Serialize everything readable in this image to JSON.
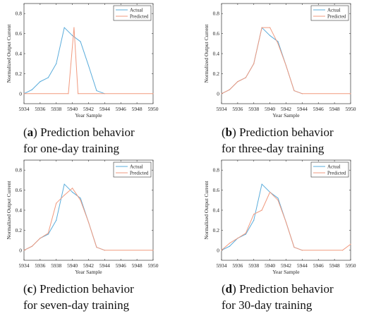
{
  "colors": {
    "actual": "#5aacdb",
    "predicted": "#f19a7f",
    "axis": "#333333"
  },
  "chart_data": [
    {
      "type": "line",
      "panel": "a",
      "ylabel": "Normalized Output Current",
      "xlabel": "Year Sample",
      "xlim": [
        5934,
        5950
      ],
      "ylim": [
        -0.1,
        0.9
      ],
      "xticks": [
        5934,
        5936,
        5938,
        5940,
        5942,
        5944,
        5946,
        5948,
        5950
      ],
      "yticks": [
        0,
        0.2,
        0.4,
        0.6,
        0.8
      ],
      "grid": false,
      "legend": "top-right",
      "series": [
        {
          "name": "Actual",
          "color": "#5aacdb",
          "x": [
            5934,
            5935,
            5936,
            5937,
            5938,
            5939,
            5940,
            5941,
            5942,
            5943,
            5944
          ],
          "y": [
            0,
            0.04,
            0.12,
            0.16,
            0.3,
            0.66,
            0.58,
            0.52,
            0.28,
            0.03,
            0
          ]
        },
        {
          "name": "Predicted",
          "color": "#f19a7f",
          "x": [
            5934,
            5939.5,
            5940.2,
            5940.7,
            5950
          ],
          "y": [
            0,
            0,
            0.66,
            0,
            0
          ]
        }
      ]
    },
    {
      "type": "line",
      "panel": "b",
      "ylabel": "Normalized Output Current",
      "xlabel": "Year Sample",
      "xlim": [
        5934,
        5950
      ],
      "ylim": [
        -0.1,
        0.9
      ],
      "xticks": [
        5934,
        5936,
        5938,
        5940,
        5942,
        5944,
        5946,
        5948,
        5950
      ],
      "yticks": [
        0,
        0.2,
        0.4,
        0.6,
        0.8
      ],
      "grid": false,
      "legend": "top-right",
      "series": [
        {
          "name": "Actual",
          "color": "#5aacdb",
          "x": [
            5934,
            5935,
            5936,
            5937,
            5938,
            5939,
            5940,
            5941,
            5942,
            5943,
            5944
          ],
          "y": [
            0,
            0.04,
            0.12,
            0.16,
            0.3,
            0.66,
            0.58,
            0.52,
            0.28,
            0.03,
            0
          ]
        },
        {
          "name": "Predicted",
          "color": "#f19a7f",
          "x": [
            5934,
            5935,
            5936,
            5937,
            5938,
            5939,
            5940,
            5941,
            5942,
            5943,
            5944,
            5950
          ],
          "y": [
            0,
            0.04,
            0.12,
            0.16,
            0.3,
            0.66,
            0.66,
            0.5,
            0.28,
            0.03,
            0,
            0
          ]
        }
      ]
    },
    {
      "type": "line",
      "panel": "c",
      "ylabel": "Normalized Output Current",
      "xlabel": "Year Sample",
      "xlim": [
        5934,
        5950
      ],
      "ylim": [
        -0.1,
        0.9
      ],
      "xticks": [
        5934,
        5936,
        5938,
        5940,
        5942,
        5944,
        5946,
        5948,
        5950
      ],
      "yticks": [
        0,
        0.2,
        0.4,
        0.6,
        0.8
      ],
      "grid": false,
      "legend": "top-right",
      "series": [
        {
          "name": "Actual",
          "color": "#5aacdb",
          "x": [
            5934,
            5935,
            5936,
            5937,
            5938,
            5939,
            5940,
            5941,
            5942,
            5943,
            5944
          ],
          "y": [
            0,
            0.04,
            0.12,
            0.16,
            0.3,
            0.66,
            0.58,
            0.52,
            0.28,
            0.03,
            0
          ]
        },
        {
          "name": "Predicted",
          "color": "#f19a7f",
          "x": [
            5934,
            5935,
            5936,
            5937,
            5938,
            5939,
            5940,
            5941,
            5942,
            5943,
            5944,
            5950
          ],
          "y": [
            0,
            0.04,
            0.12,
            0.17,
            0.47,
            0.55,
            0.62,
            0.5,
            0.28,
            0.03,
            0,
            0
          ]
        }
      ]
    },
    {
      "type": "line",
      "panel": "d",
      "ylabel": "Normalized Output Current",
      "xlabel": "Year Sample",
      "xlim": [
        5934,
        5950
      ],
      "ylim": [
        -0.1,
        0.9
      ],
      "xticks": [
        5934,
        5936,
        5938,
        5940,
        5942,
        5944,
        5946,
        5948,
        5950
      ],
      "yticks": [
        0,
        0.2,
        0.4,
        0.6,
        0.8
      ],
      "grid": false,
      "legend": "top-right",
      "series": [
        {
          "name": "Actual",
          "color": "#5aacdb",
          "x": [
            5934,
            5935,
            5936,
            5937,
            5938,
            5939,
            5940,
            5941,
            5942,
            5943,
            5944
          ],
          "y": [
            0,
            0.04,
            0.12,
            0.16,
            0.3,
            0.66,
            0.58,
            0.52,
            0.28,
            0.03,
            0
          ]
        },
        {
          "name": "Predicted",
          "color": "#f19a7f",
          "x": [
            5934,
            5935,
            5936,
            5937,
            5938,
            5939,
            5940,
            5941,
            5942,
            5943,
            5944,
            5949,
            5950
          ],
          "y": [
            0,
            0.07,
            0.12,
            0.17,
            0.36,
            0.4,
            0.58,
            0.5,
            0.28,
            0.03,
            0,
            0,
            0.06
          ]
        }
      ]
    }
  ],
  "captions": [
    {
      "letter": "a",
      "line1": " Prediction behavior",
      "line2": "for one-day training"
    },
    {
      "letter": "b",
      "line1": " Prediction behavior",
      "line2": "for three-day training"
    },
    {
      "letter": "c",
      "line1": " Prediction behavior",
      "line2": "for seven-day training"
    },
    {
      "letter": "d",
      "line1": " Prediction behavior",
      "line2": "for 30-day training"
    }
  ]
}
